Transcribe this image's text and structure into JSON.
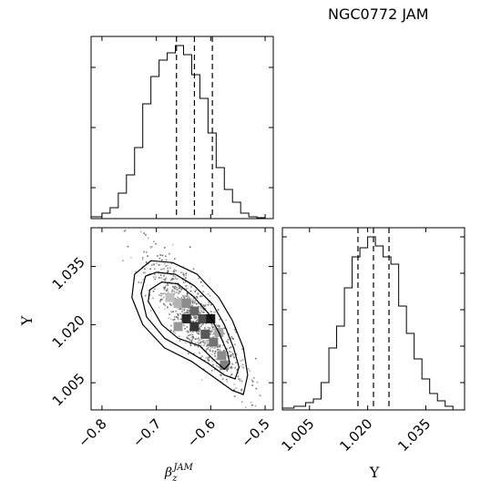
{
  "title": "NGC0772 JAM",
  "chart_data": [
    {
      "id": "beta-histogram",
      "type": "bar",
      "subtype": "step-histogram",
      "x_range": [
        -0.82,
        -0.485
      ],
      "bin_edges": [
        -0.82,
        -0.8,
        -0.785,
        -0.77,
        -0.755,
        -0.74,
        -0.725,
        -0.71,
        -0.695,
        -0.68,
        -0.665,
        -0.65,
        -0.635,
        -0.62,
        -0.605,
        -0.59,
        -0.575,
        -0.56,
        -0.545,
        -0.53,
        -0.515,
        -0.5,
        -0.485
      ],
      "counts": [
        1,
        3,
        6,
        14,
        24,
        39,
        63,
        78,
        87,
        91,
        95,
        90,
        79,
        66,
        47,
        28,
        16,
        9,
        3,
        1,
        0.5,
        0
      ],
      "ylim": [
        0,
        100
      ],
      "quantile_lines": [
        -0.663,
        -0.63,
        -0.597
      ],
      "y_ticks": [
        17,
        50,
        83
      ],
      "tick_labels_shown": false
    },
    {
      "id": "upsilon-histogram",
      "type": "bar",
      "subtype": "step-histogram",
      "x_range": [
        0.998,
        1.045
      ],
      "bin_edges": [
        0.998,
        1.001,
        1.004,
        1.006,
        1.008,
        1.01,
        1.012,
        1.014,
        1.016,
        1.018,
        1.02,
        1.022,
        1.024,
        1.026,
        1.028,
        1.03,
        1.032,
        1.034,
        1.036,
        1.038,
        1.04,
        1.042,
        1.045
      ],
      "counts": [
        1,
        2,
        4,
        6,
        15,
        34,
        46,
        67,
        84,
        89,
        95,
        90,
        84,
        80,
        57,
        42,
        28,
        17,
        9,
        5,
        2,
        0
      ],
      "ylim": [
        0,
        100
      ],
      "quantile_lines": [
        1.0175,
        1.0215,
        1.0255
      ],
      "x_ticks": [
        1.005,
        1.02,
        1.035
      ],
      "x_tick_labels": [
        "1.005",
        "1.020",
        "1.035"
      ],
      "y_ticks": [
        15,
        35,
        55,
        75,
        95
      ],
      "x_label": "Υ"
    },
    {
      "id": "joint-density",
      "type": "scatter",
      "subtype": "2d-density-contour",
      "x_range": [
        -0.82,
        -0.485
      ],
      "y_range": [
        0.998,
        1.045
      ],
      "x_ticks": [
        -0.8,
        -0.7,
        -0.6,
        -0.5
      ],
      "x_tick_labels": [
        "−0.8",
        "−0.7",
        "−0.6",
        "−0.5"
      ],
      "y_ticks": [
        1.005,
        1.02,
        1.035
      ],
      "y_tick_labels": [
        "1.005",
        "1.020",
        "1.035"
      ],
      "x_label": "β",
      "x_label_sub": "z",
      "x_label_sup": "JAM",
      "y_label": "Υ",
      "center": [
        -0.63,
        1.0215
      ],
      "contours": [
        [
          [
            -0.69,
            1.031
          ],
          [
            -0.66,
            1.0305
          ],
          [
            -0.63,
            1.027
          ],
          [
            -0.605,
            1.023
          ],
          [
            -0.585,
            1.018
          ],
          [
            -0.57,
            1.013
          ],
          [
            -0.565,
            1.01
          ],
          [
            -0.575,
            1.0085
          ],
          [
            -0.595,
            1.011
          ],
          [
            -0.62,
            1.0145
          ],
          [
            -0.66,
            1.0165
          ],
          [
            -0.69,
            1.02
          ],
          [
            -0.715,
            1.026
          ],
          [
            -0.712,
            1.029
          ]
        ],
        [
          [
            -0.7,
            1.0335
          ],
          [
            -0.665,
            1.033
          ],
          [
            -0.63,
            1.03
          ],
          [
            -0.595,
            1.025
          ],
          [
            -0.575,
            1.02
          ],
          [
            -0.558,
            1.014
          ],
          [
            -0.548,
            1.009
          ],
          [
            -0.555,
            1.006
          ],
          [
            -0.575,
            1.007
          ],
          [
            -0.605,
            1.01
          ],
          [
            -0.64,
            1.013
          ],
          [
            -0.685,
            1.0165
          ],
          [
            -0.718,
            1.022
          ],
          [
            -0.728,
            1.028
          ],
          [
            -0.72,
            1.0325
          ]
        ],
        [
          [
            -0.71,
            1.0365
          ],
          [
            -0.67,
            1.036
          ],
          [
            -0.625,
            1.033
          ],
          [
            -0.585,
            1.027
          ],
          [
            -0.56,
            1.021
          ],
          [
            -0.54,
            1.014
          ],
          [
            -0.532,
            1.007
          ],
          [
            -0.54,
            1.002
          ],
          [
            -0.56,
            1.003
          ],
          [
            -0.595,
            1.0065
          ],
          [
            -0.635,
            1.0105
          ],
          [
            -0.685,
            1.014
          ],
          [
            -0.725,
            1.02
          ],
          [
            -0.745,
            1.027
          ],
          [
            -0.74,
            1.033
          ]
        ]
      ],
      "density_cells": [
        {
          "x": -0.66,
          "y": 1.0255,
          "level": 0.3
        },
        {
          "x": -0.645,
          "y": 1.0255,
          "level": 0.45
        },
        {
          "x": -0.63,
          "y": 1.0235,
          "level": 0.6
        },
        {
          "x": -0.615,
          "y": 1.0215,
          "level": 0.7
        },
        {
          "x": -0.645,
          "y": 1.0215,
          "level": 0.85
        },
        {
          "x": -0.63,
          "y": 1.0195,
          "level": 0.8
        },
        {
          "x": -0.61,
          "y": 1.0175,
          "level": 0.65
        },
        {
          "x": -0.595,
          "y": 1.0155,
          "level": 0.55
        },
        {
          "x": -0.58,
          "y": 1.012,
          "level": 0.45
        },
        {
          "x": -0.675,
          "y": 1.027,
          "level": 0.25
        },
        {
          "x": -0.6,
          "y": 1.0215,
          "level": 0.9
        },
        {
          "x": -0.585,
          "y": 1.018,
          "level": 0.35
        },
        {
          "x": -0.66,
          "y": 1.0195,
          "level": 0.4
        },
        {
          "x": -0.575,
          "y": 1.0095,
          "level": 0.5
        }
      ]
    }
  ]
}
